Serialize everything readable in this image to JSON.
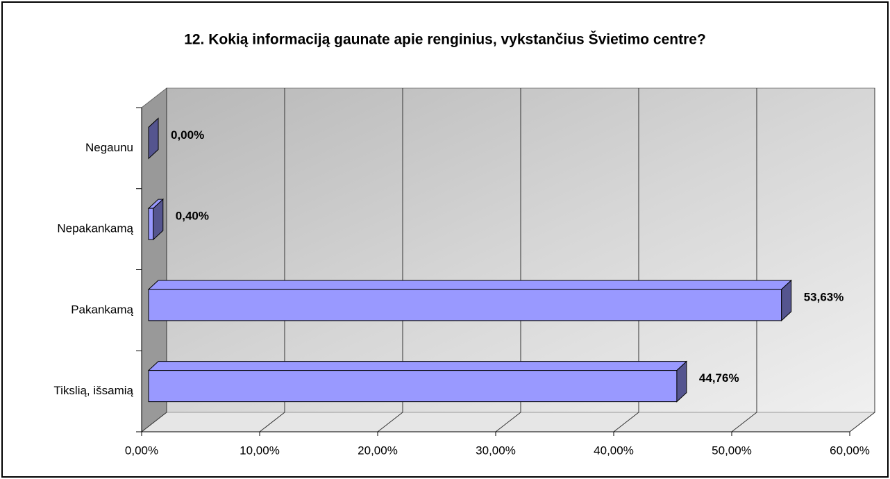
{
  "chart_data": {
    "type": "bar3d_horizontal",
    "title": "12. Kokią informaciją gaunate apie renginius, vykstančius Švietimo centre?",
    "categories": [
      "Negaunu",
      "Nepakankamą",
      "Pakankamą",
      "Tikslią, išsamią"
    ],
    "values": [
      0.0,
      0.4,
      53.63,
      44.76
    ],
    "value_labels": [
      "0,00%",
      "0,40%",
      "53,63%",
      "44,76%"
    ],
    "color": "#9999ff",
    "xlim": [
      0,
      60
    ],
    "xticks": [
      {
        "value": 0,
        "label": "0,00%"
      },
      {
        "value": 10,
        "label": "10,00%"
      },
      {
        "value": 20,
        "label": "20,00%"
      },
      {
        "value": 30,
        "label": "30,00%"
      },
      {
        "value": 40,
        "label": "40,00%"
      },
      {
        "value": 50,
        "label": "50,00%"
      },
      {
        "value": 60,
        "label": "60,00%"
      }
    ],
    "grid": true
  }
}
